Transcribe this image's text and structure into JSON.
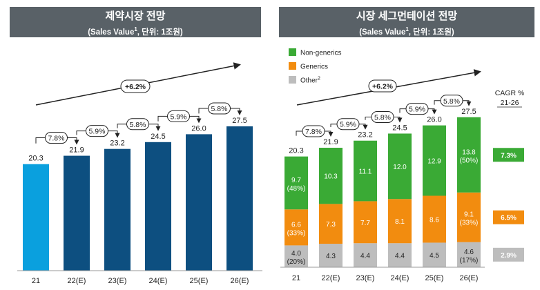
{
  "left": {
    "title": "제약시장 전망",
    "subtitle_pre": "(Sales Value",
    "subtitle_sup": "1",
    "subtitle_post": ", 단위: 1조원)",
    "cagr_label": "+6.2%",
    "chart_data": {
      "type": "bar",
      "categories": [
        "21",
        "22(E)",
        "23(E)",
        "24(E)",
        "25(E)",
        "26(E)"
      ],
      "values": [
        20.3,
        21.9,
        23.2,
        24.5,
        26.0,
        27.5
      ],
      "growth_labels": [
        "7.8%",
        "5.9%",
        "5.8%",
        "5.9%",
        "5.8%"
      ],
      "colors": {
        "first": "#0aa0de",
        "rest": "#0d4f80"
      }
    }
  },
  "right": {
    "title": "시장 세그먼테이션 전망",
    "subtitle_pre": "(Sales Value",
    "subtitle_sup": "1",
    "subtitle_post": ", 단위: 1조원)",
    "cagr_label": "+6.2%",
    "cagr_header": [
      "CAGR %",
      "21-26"
    ],
    "legend": [
      {
        "label": "Non-generics",
        "color": "#3aaa35"
      },
      {
        "label": "Generics",
        "color": "#f28c0f"
      },
      {
        "label": "Other",
        "sup": "2",
        "color": "#bdbdbd"
      }
    ],
    "chart_data": {
      "type": "bar",
      "stacked": true,
      "categories": [
        "21",
        "22(E)",
        "23(E)",
        "24(E)",
        "25(E)",
        "26(E)"
      ],
      "totals": [
        "20.3",
        "21.9",
        "23.2",
        "24.5",
        "26.0",
        "27.5"
      ],
      "growth_labels": [
        "7.8%",
        "5.9%",
        "5.8%",
        "5.9%",
        "5.8%"
      ],
      "series": [
        {
          "key": "Other",
          "color": "#bdbdbd",
          "values": [
            4.0,
            4.3,
            4.4,
            4.4,
            4.5,
            4.6
          ],
          "labels": [
            "4.0",
            "4.3",
            "4.4",
            "4.4",
            "4.5",
            "4.6"
          ],
          "shares": [
            "(20%)",
            "",
            "",
            "",
            "",
            "(17%)"
          ],
          "cagr": "2.9%"
        },
        {
          "key": "Generics",
          "color": "#f28c0f",
          "values": [
            6.6,
            7.3,
            7.7,
            8.1,
            8.6,
            9.1
          ],
          "labels": [
            "6.6",
            "7.3",
            "7.7",
            "8.1",
            "8.6",
            "9.1"
          ],
          "shares": [
            "(33%)",
            "",
            "",
            "",
            "",
            "(33%)"
          ],
          "cagr": "6.5%"
        },
        {
          "key": "Non-generics",
          "color": "#3aaa35",
          "values": [
            9.7,
            10.3,
            11.1,
            12.0,
            12.9,
            13.8
          ],
          "labels": [
            "9.7",
            "10.3",
            "11.1",
            "12.0",
            "12.9",
            "13.8"
          ],
          "shares": [
            "(48%)",
            "",
            "",
            "",
            "",
            "(50%)"
          ],
          "cagr": "7.3%"
        }
      ]
    }
  }
}
